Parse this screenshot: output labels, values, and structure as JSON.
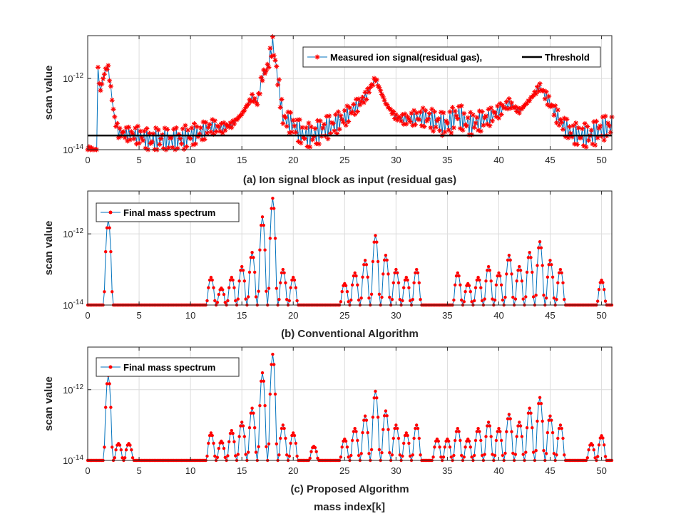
{
  "colors": {
    "line": "#0072BD",
    "marker": "#FF0000",
    "threshold": "#000000",
    "grid": "#DCDCDC",
    "axis": "#262626"
  },
  "x_label": "mass index[k]",
  "chart_data": [
    {
      "type": "line",
      "panel": "a",
      "caption": "(a) Ion signal block as input (residual gas)",
      "ylabel": "scan value",
      "yscale": "log",
      "xlim": [
        0,
        51
      ],
      "ylim": [
        1e-14,
        1.6e-11
      ],
      "x_ticks": [
        0,
        5,
        10,
        15,
        20,
        25,
        30,
        35,
        40,
        45,
        50
      ],
      "y_ticks": [
        {
          "value": 1e-14,
          "base": "10",
          "exp": "-14"
        },
        {
          "value": 1e-12,
          "base": "10",
          "exp": "-12"
        }
      ],
      "grid": true,
      "legend_position": "top-right",
      "marker": "asterisk",
      "x_step": 0.125,
      "series": [
        {
          "name": "Measured ion signal(residual gas),",
          "anchors": [
            [
              0,
              1e-14
            ],
            [
              0.9,
              1e-14
            ],
            [
              1,
              2e-12
            ],
            [
              1.2,
              4e-13
            ],
            [
              1.5,
              1e-12
            ],
            [
              1.8,
              2e-12
            ],
            [
              2,
              2e-12
            ],
            [
              2.3,
              4e-13
            ],
            [
              2.6,
              8e-14
            ],
            [
              3,
              3e-14
            ],
            [
              5,
              2.5e-14
            ],
            [
              6,
              1.8e-14
            ],
            [
              7,
              2e-14
            ],
            [
              8,
              1.8e-14
            ],
            [
              9,
              2e-14
            ],
            [
              10,
              2.5e-14
            ],
            [
              11,
              3e-14
            ],
            [
              12,
              4.5e-14
            ],
            [
              13,
              4e-14
            ],
            [
              14,
              5e-14
            ],
            [
              15,
              1e-13
            ],
            [
              16,
              3e-13
            ],
            [
              16.5,
              2e-13
            ],
            [
              17,
              1.2e-12
            ],
            [
              17.5,
              2e-12
            ],
            [
              18,
              1e-11
            ],
            [
              18.5,
              1e-12
            ],
            [
              19,
              8e-14
            ],
            [
              20,
              5e-14
            ],
            [
              21,
              2.5e-14
            ],
            [
              22,
              2.5e-14
            ],
            [
              23,
              4e-14
            ],
            [
              24,
              5e-14
            ],
            [
              25,
              8e-14
            ],
            [
              26,
              1.5e-13
            ],
            [
              27,
              3e-13
            ],
            [
              28,
              1e-12
            ],
            [
              29,
              2e-13
            ],
            [
              30,
              8e-14
            ],
            [
              31,
              7e-14
            ],
            [
              32,
              8e-14
            ],
            [
              33,
              8e-14
            ],
            [
              34,
              6e-14
            ],
            [
              35,
              5e-14
            ],
            [
              36,
              1e-13
            ],
            [
              37,
              5e-14
            ],
            [
              38,
              6e-14
            ],
            [
              39,
              8e-14
            ],
            [
              40,
              1.2e-13
            ],
            [
              41,
              2e-13
            ],
            [
              42,
              1.2e-13
            ],
            [
              43,
              2.5e-13
            ],
            [
              44,
              6e-13
            ],
            [
              45,
              2e-13
            ],
            [
              46,
              6e-14
            ],
            [
              47,
              3e-14
            ],
            [
              48,
              2.5e-14
            ],
            [
              49,
              2.5e-14
            ],
            [
              50,
              4e-14
            ],
            [
              51,
              4.5e-14
            ]
          ]
        },
        {
          "name": "Threshold",
          "constant": 2.5e-14
        }
      ]
    },
    {
      "type": "line",
      "panel": "b",
      "caption": "(b) Conventional Algorithm",
      "ylabel": "scan value",
      "yscale": "log",
      "xlim": [
        0,
        51
      ],
      "ylim": [
        1e-14,
        1.6e-11
      ],
      "x_ticks": [
        0,
        5,
        10,
        15,
        20,
        25,
        30,
        35,
        40,
        45,
        50
      ],
      "y_ticks": [
        {
          "value": 1e-14,
          "base": "10",
          "exp": "-14"
        },
        {
          "value": 1e-12,
          "base": "10",
          "exp": "-12"
        }
      ],
      "grid": true,
      "legend_position": "top-left",
      "marker": "dot",
      "x_step": 0.125,
      "baseline": 1e-14,
      "series": [
        {
          "name": "Final mass spectrum",
          "peaks": [
            [
              2,
              2.5e-12
            ],
            [
              12,
              6e-14
            ],
            [
              13,
              3e-14
            ],
            [
              14,
              6e-14
            ],
            [
              15,
              1.2e-13
            ],
            [
              16,
              3e-13
            ],
            [
              17,
              3e-12
            ],
            [
              18,
              1e-11
            ],
            [
              19,
              1e-13
            ],
            [
              20,
              6e-14
            ],
            [
              25,
              4e-14
            ],
            [
              26,
              8e-14
            ],
            [
              27,
              1.8e-13
            ],
            [
              28,
              9e-13
            ],
            [
              29,
              2.5e-13
            ],
            [
              30,
              1e-13
            ],
            [
              31,
              6e-14
            ],
            [
              32,
              1e-13
            ],
            [
              36,
              8e-14
            ],
            [
              37,
              4e-14
            ],
            [
              38,
              6e-14
            ],
            [
              39,
              1.2e-13
            ],
            [
              40,
              8e-14
            ],
            [
              41,
              2.5e-13
            ],
            [
              42,
              1.2e-13
            ],
            [
              43,
              3e-13
            ],
            [
              44,
              6e-13
            ],
            [
              45,
              1.8e-13
            ],
            [
              46,
              1e-13
            ],
            [
              50,
              5e-14
            ]
          ]
        }
      ]
    },
    {
      "type": "line",
      "panel": "c",
      "caption": "(c) Proposed Algorithm",
      "ylabel": "scan value",
      "yscale": "log",
      "xlim": [
        0,
        51
      ],
      "ylim": [
        1e-14,
        1.6e-11
      ],
      "x_ticks": [
        0,
        5,
        10,
        15,
        20,
        25,
        30,
        35,
        40,
        45,
        50
      ],
      "y_ticks": [
        {
          "value": 1e-14,
          "base": "10",
          "exp": "-14"
        },
        {
          "value": 1e-12,
          "base": "10",
          "exp": "-12"
        }
      ],
      "grid": true,
      "legend_position": "top-left",
      "marker": "dot",
      "x_step": 0.125,
      "baseline": 1e-14,
      "series": [
        {
          "name": "Final mass spectrum",
          "peaks": [
            [
              2,
              2.5e-12
            ],
            [
              3,
              3e-14
            ],
            [
              4,
              3e-14
            ],
            [
              12,
              6e-14
            ],
            [
              13,
              3.5e-14
            ],
            [
              14,
              7e-14
            ],
            [
              15,
              1.2e-13
            ],
            [
              16,
              3e-13
            ],
            [
              17,
              3e-12
            ],
            [
              18,
              1e-11
            ],
            [
              19,
              1e-13
            ],
            [
              20,
              6e-14
            ],
            [
              22,
              2.5e-14
            ],
            [
              25,
              4e-14
            ],
            [
              26,
              8e-14
            ],
            [
              27,
              1.8e-13
            ],
            [
              28,
              9e-13
            ],
            [
              29,
              2.5e-13
            ],
            [
              30,
              1e-13
            ],
            [
              31,
              6e-14
            ],
            [
              32,
              1e-13
            ],
            [
              34,
              4e-14
            ],
            [
              35,
              4e-14
            ],
            [
              36,
              8e-14
            ],
            [
              37,
              4e-14
            ],
            [
              38,
              8e-14
            ],
            [
              39,
              1.2e-13
            ],
            [
              40,
              8e-14
            ],
            [
              41,
              2e-13
            ],
            [
              42,
              1.2e-13
            ],
            [
              43,
              3e-13
            ],
            [
              44,
              6e-13
            ],
            [
              45,
              1.8e-13
            ],
            [
              46,
              1e-13
            ],
            [
              49,
              3e-14
            ],
            [
              50,
              5e-14
            ]
          ]
        }
      ]
    }
  ]
}
